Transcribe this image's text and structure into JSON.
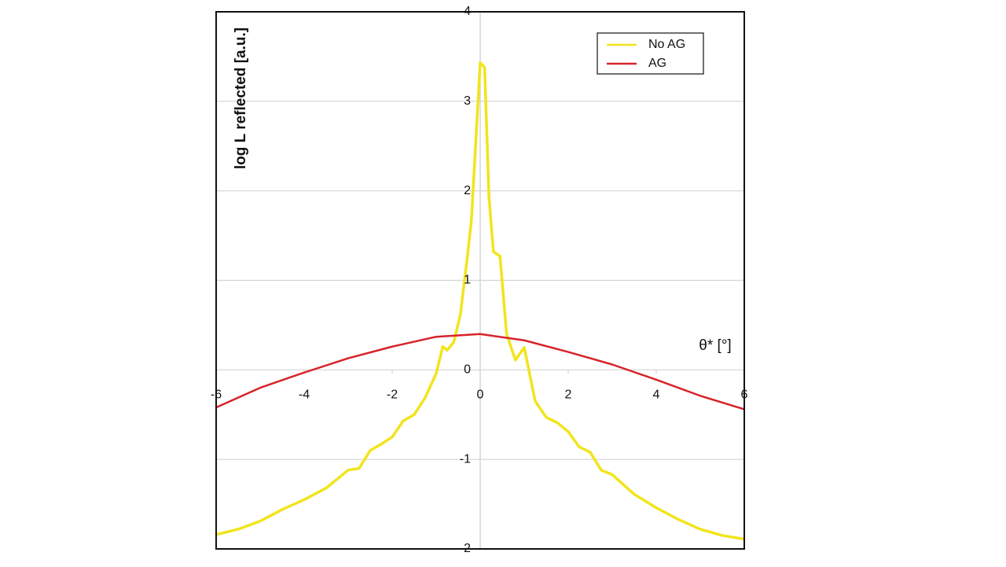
{
  "chart_data": {
    "type": "line",
    "xlabel": "θ* [°]",
    "ylabel": "log L reflected [a.u.]",
    "xlim": [
      -6,
      6
    ],
    "ylim": [
      -2,
      4
    ],
    "xticks": [
      -6,
      -4,
      -2,
      0,
      2,
      4,
      6
    ],
    "yticks": [
      -2,
      -1,
      0,
      1,
      2,
      3,
      4
    ],
    "grid": true,
    "legend": "upper right",
    "series": [
      {
        "name": "No AG",
        "color": "#f2e41c",
        "x": [
          -6,
          -5.5,
          -5,
          -4.5,
          -4,
          -3.5,
          -3,
          -2.75,
          -2.5,
          -2.25,
          -2,
          -1.75,
          -1.5,
          -1.25,
          -1,
          -0.85,
          -0.75,
          -0.6,
          -0.45,
          -0.3,
          -0.2,
          -0.1,
          0,
          0.1,
          0.2,
          0.3,
          0.45,
          0.6,
          0.8,
          1,
          1.25,
          1.5,
          1.75,
          2,
          2.25,
          2.5,
          2.75,
          3,
          3.5,
          4,
          4.5,
          5,
          5.5,
          6
        ],
        "values": [
          -1.84,
          -1.78,
          -1.69,
          -1.56,
          -1.45,
          -1.32,
          -1.12,
          -1.1,
          -0.9,
          -0.83,
          -0.75,
          -0.57,
          -0.5,
          -0.31,
          -0.04,
          0.26,
          0.22,
          0.31,
          0.62,
          1.23,
          1.67,
          2.55,
          3.43,
          3.38,
          1.93,
          1.32,
          1.27,
          0.4,
          0.11,
          0.25,
          -0.35,
          -0.53,
          -0.59,
          -0.69,
          -0.86,
          -0.92,
          -1.12,
          -1.17,
          -1.39,
          -1.54,
          -1.67,
          -1.78,
          -1.85,
          -1.89
        ]
      },
      {
        "name": "AG",
        "color": "#d7232a",
        "x": [
          -6,
          -5,
          -4,
          -3,
          -2,
          -1,
          0,
          1,
          2,
          3,
          4,
          5,
          6
        ],
        "values": [
          -0.42,
          -0.2,
          -0.03,
          0.13,
          0.26,
          0.37,
          0.4,
          0.33,
          0.2,
          0.06,
          -0.11,
          -0.29,
          -0.44
        ]
      }
    ]
  }
}
